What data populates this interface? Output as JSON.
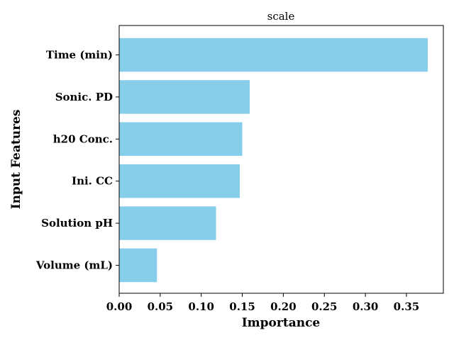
{
  "chart_data": {
    "type": "bar",
    "orientation": "horizontal",
    "title": "scale",
    "xlabel": "Importance",
    "ylabel": "Input Features",
    "categories": [
      "Time (min)",
      "Sonic. PD",
      "h20 Conc.",
      "Ini. CC",
      "Solution pH",
      "Volume (mL)"
    ],
    "values": [
      0.376,
      0.159,
      0.15,
      0.147,
      0.118,
      0.046
    ],
    "xlim": [
      0,
      0.395
    ],
    "xticks": [
      "0.00",
      "0.05",
      "0.10",
      "0.15",
      "0.20",
      "0.25",
      "0.30",
      "0.35"
    ],
    "bar_color": "#87ceeb",
    "grid": false,
    "legend": "none"
  }
}
